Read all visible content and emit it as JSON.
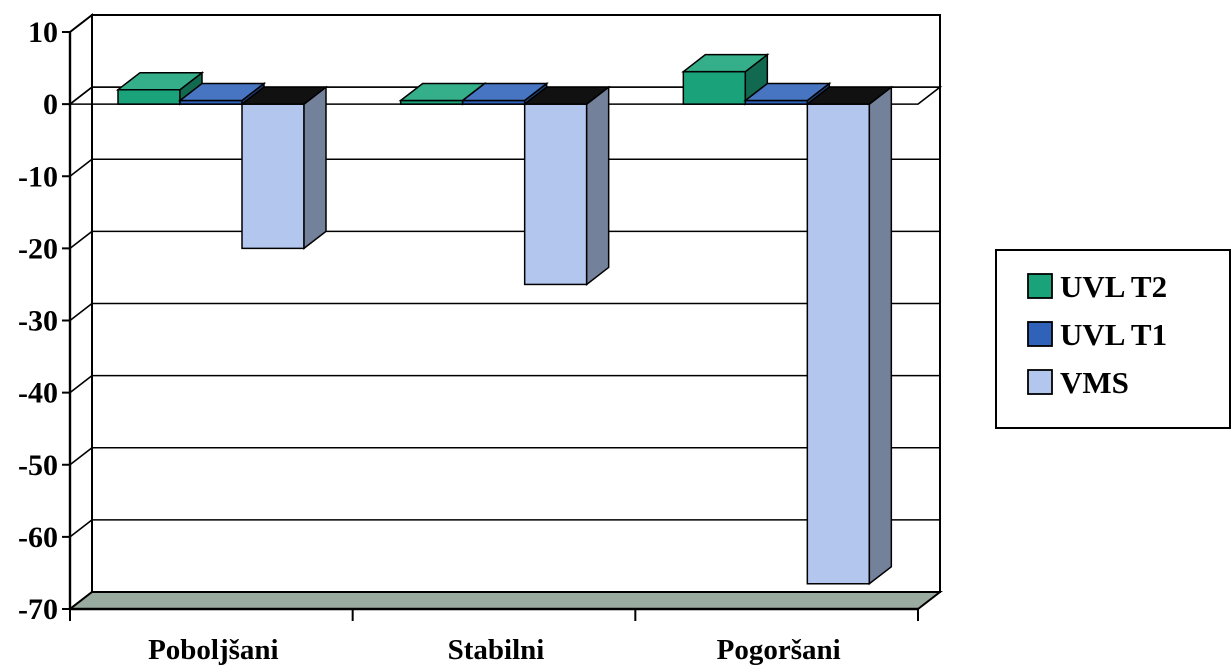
{
  "chart_data": {
    "type": "bar",
    "categories": [
      "Poboljšani",
      "Stabilni",
      "Pogoršani"
    ],
    "series": [
      {
        "name": "UVL T2",
        "values": [
          2,
          0.5,
          4.5
        ],
        "color": "#1aa37a"
      },
      {
        "name": "UVL T1",
        "values": [
          0.5,
          0.5,
          0.5
        ],
        "color": "#2f62b8"
      },
      {
        "name": "VMS",
        "values": [
          -20,
          -25,
          -66.5
        ],
        "color": "#b3c7ee"
      }
    ],
    "ylim": [
      -70,
      10
    ],
    "yticks": [
      10,
      0,
      -10,
      -20,
      -30,
      -40,
      -50,
      -60,
      -70
    ],
    "grid": true,
    "legend_position": "right",
    "three_d": true
  }
}
